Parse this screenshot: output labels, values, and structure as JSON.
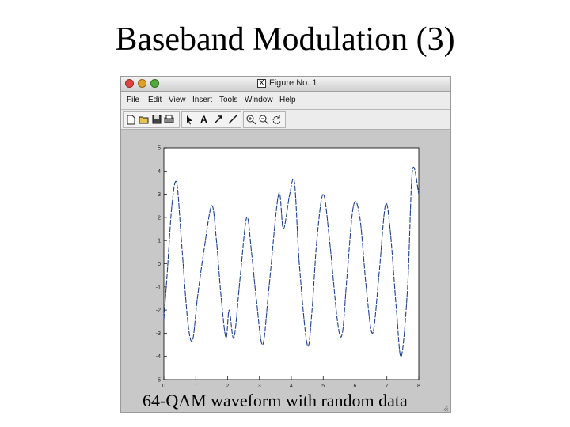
{
  "slide": {
    "title": "Baseband Modulation (3)",
    "caption": "64-QAM waveform with random data"
  },
  "window": {
    "title": "Figure No. 1",
    "title_icon": "x11-icon",
    "menu": [
      "File",
      "Edit",
      "View",
      "Insert",
      "Tools",
      "Window",
      "Help"
    ],
    "toolbar_icons": [
      "new-file-icon",
      "open-folder-icon",
      "save-icon",
      "print-icon",
      "select-arrow-icon",
      "text-icon",
      "draw-arrow-icon",
      "draw-line-icon",
      "zoom-in-icon",
      "zoom-out-icon",
      "rotate-icon"
    ]
  },
  "chart_data": {
    "type": "line",
    "title": "",
    "xlabel": "",
    "ylabel": "",
    "xlim": [
      0,
      8
    ],
    "ylim": [
      -5,
      5
    ],
    "x_ticks": [
      "0",
      "1",
      "2",
      "3",
      "4",
      "5",
      "6",
      "7",
      "8"
    ],
    "y_ticks": [
      "5",
      "4",
      "3",
      "2",
      "1",
      "0",
      "-1",
      "-2",
      "-3",
      "-4",
      "-5"
    ],
    "line_color": "#1f3f8f",
    "grid": false,
    "series": [
      {
        "x": [
          0,
          0.1,
          0.25,
          0.4,
          0.55,
          0.75,
          0.9,
          1.05,
          1.25,
          1.5,
          1.65,
          1.8,
          1.95,
          2.05,
          2.2,
          2.4,
          2.6,
          2.75,
          2.9,
          3.1,
          3.3,
          3.6,
          3.75,
          3.95,
          4.1,
          4.25,
          4.5,
          4.65,
          4.8,
          5.0,
          5.2,
          5.45,
          5.6,
          5.75,
          5.95,
          6.15,
          6.35,
          6.55,
          6.75,
          6.95,
          7.1,
          7.3,
          7.45,
          7.65,
          7.8,
          8.0
        ],
        "y": [
          -2.4,
          -0.5,
          2.5,
          3.5,
          1.0,
          -2.5,
          -3.3,
          -1.5,
          0.5,
          2.5,
          1.0,
          -1.5,
          -3.2,
          -2.0,
          -3.2,
          -0.5,
          2.0,
          0.5,
          -1.5,
          -3.5,
          -1.0,
          3.0,
          1.5,
          3.0,
          3.5,
          0.0,
          -3.5,
          -2.0,
          1.0,
          3.0,
          1.0,
          -2.5,
          -3.0,
          -0.5,
          2.5,
          2.0,
          -1.0,
          -3.0,
          -0.5,
          2.5,
          1.5,
          -2.0,
          -4.0,
          -1.0,
          4.0,
          3.0
        ]
      }
    ]
  }
}
